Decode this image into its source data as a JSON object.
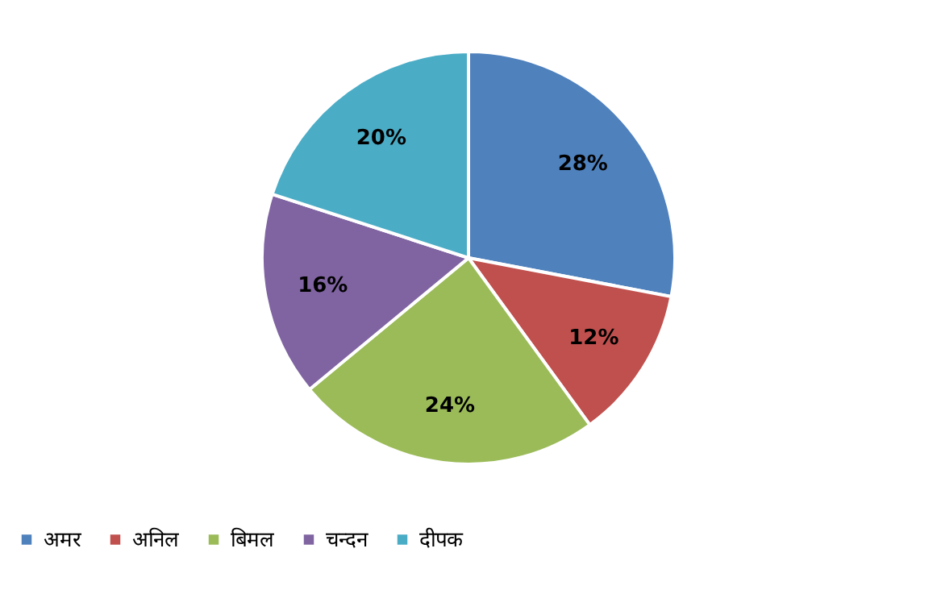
{
  "chart_data": {
    "type": "pie",
    "categories": [
      "अमर",
      "अनिल",
      "बिमल",
      "चन्दन",
      "दीपक"
    ],
    "values": [
      28,
      12,
      24,
      16,
      20
    ],
    "colors": [
      "#4f81bd",
      "#c0504d",
      "#9bbb59",
      "#8064a2",
      "#4bacc6"
    ],
    "value_labels": [
      "28%",
      "12%",
      "24%",
      "16%",
      "20%"
    ],
    "legend": "bottom"
  }
}
